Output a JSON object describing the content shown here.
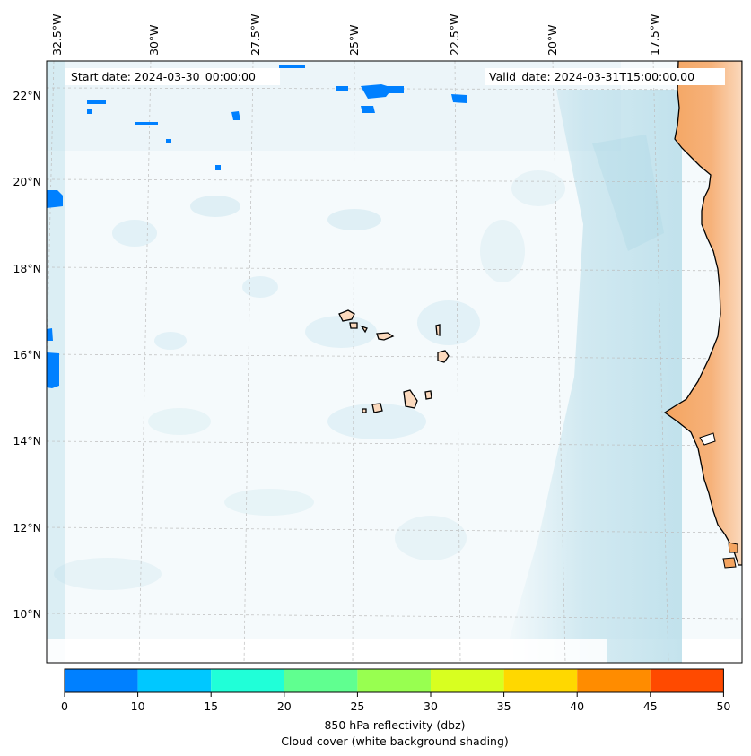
{
  "banner": {
    "start": "Start date: 2024-03-30_00:00:00",
    "valid": "Valid_date: 2024-03-31T15:00:00.00"
  },
  "map": {
    "lon_labels": [
      "32.5°W",
      "30°W",
      "27.5°W",
      "25°W",
      "22.5°W",
      "20°W",
      "17.5°W"
    ],
    "lat_labels": [
      "22°N",
      "20°N",
      "18°N",
      "16°N",
      "14°N",
      "12°N",
      "10°N"
    ]
  },
  "colorbar": {
    "ticks": [
      "0",
      "10",
      "15",
      "20",
      "25",
      "30",
      "35",
      "40",
      "45",
      "50"
    ],
    "colors": [
      "#0080ff",
      "#00c8ff",
      "#20ffd8",
      "#60ff90",
      "#98ff50",
      "#d8ff20",
      "#ffd800",
      "#ff8c00",
      "#ff4a00"
    ],
    "label_line1": "850 hPa reflectivity (dbz)",
    "label_line2": "Cloud cover (white background shading)"
  },
  "colors": {
    "land": "#f4a460",
    "cloud": "#add8e6",
    "echo": "#0080ff",
    "coast": "#000000"
  }
}
